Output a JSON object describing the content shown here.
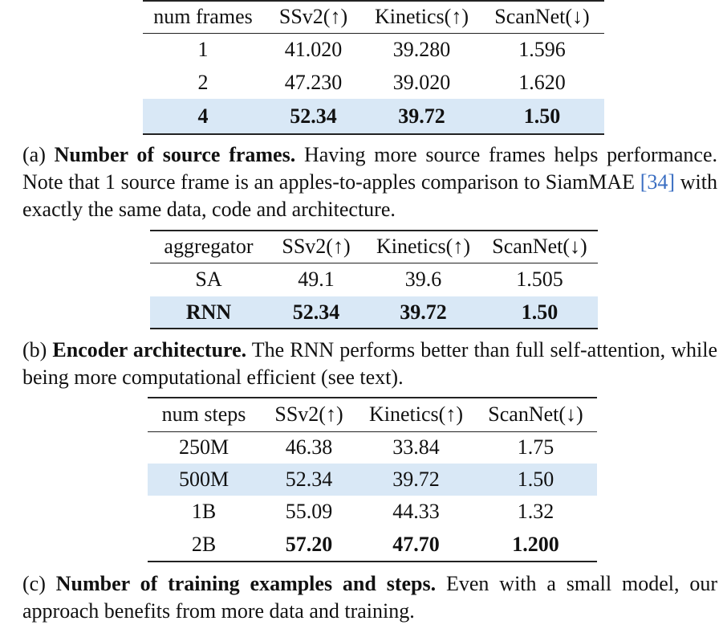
{
  "table_a": {
    "headers": [
      "num frames",
      "SSv2(↑)",
      "Kinetics(↑)",
      "ScanNet(↓)"
    ],
    "rows": [
      [
        "1",
        "41.020",
        "39.280",
        "1.596"
      ],
      [
        "2",
        "47.230",
        "39.020",
        "1.620"
      ],
      [
        "4",
        "52.34",
        "39.72",
        "1.50"
      ]
    ]
  },
  "caption_a": {
    "tag": "(a)",
    "title": "Number of source frames.",
    "text_1": "Having more source frames helps performance. Note that 1 source frame is an apples-to-apples comparison to SiamMAE ",
    "ref": "[34]",
    "text_2": " with exactly the same data, code and architecture."
  },
  "table_b": {
    "headers": [
      "aggregator",
      "SSv2(↑)",
      "Kinetics(↑)",
      "ScanNet(↓)"
    ],
    "rows": [
      [
        "SA",
        "49.1",
        "39.6",
        "1.505"
      ],
      [
        "RNN",
        "52.34",
        "39.72",
        "1.50"
      ]
    ]
  },
  "caption_b": {
    "tag": "(b)",
    "title": "Encoder architecture.",
    "text": "The RNN performs better than full self-attention, while being more computational efficient (see text)."
  },
  "table_c": {
    "headers": [
      "num steps",
      "SSv2(↑)",
      "Kinetics(↑)",
      "ScanNet(↓)"
    ],
    "rows": [
      [
        "250M",
        "46.38",
        "33.84",
        "1.75"
      ],
      [
        "500M",
        "52.34",
        "39.72",
        "1.50"
      ],
      [
        "1B",
        "55.09",
        "44.33",
        "1.32"
      ],
      [
        "2B",
        "57.20",
        "47.70",
        "1.200"
      ]
    ]
  },
  "caption_c": {
    "tag": "(c)",
    "title": "Number of training examples and steps.",
    "text": "Even with a small model, our approach benefits from more data and training."
  },
  "colors": {
    "highlight_row": "#d9e8f6",
    "citation_link": "#3a6ec2"
  }
}
